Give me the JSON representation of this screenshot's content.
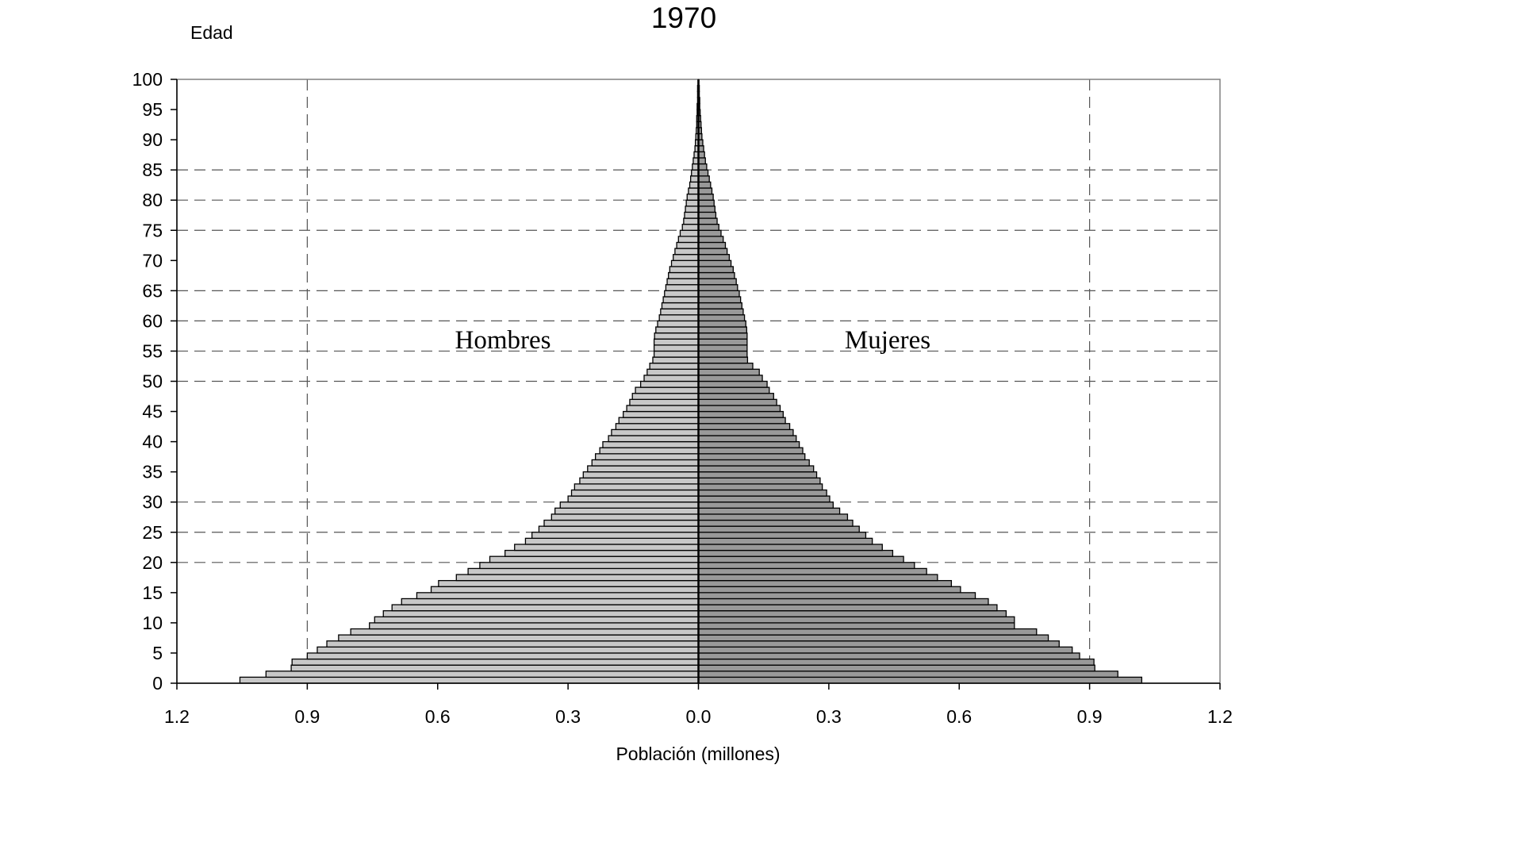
{
  "chart_data": {
    "type": "bar",
    "orientation": "horizontal",
    "layout": "population-pyramid",
    "title": "1970",
    "ylabel": "Edad",
    "xlabel": "Población (millones)",
    "xlim": [
      -1.2,
      1.2
    ],
    "ylim": [
      0,
      100
    ],
    "x_tick_labels": [
      "1.2",
      "0.9",
      "0.6",
      "0.3",
      "0.0",
      "0.3",
      "0.6",
      "0.9",
      "1.2"
    ],
    "y_ticks": [
      0,
      5,
      10,
      15,
      20,
      25,
      30,
      35,
      40,
      45,
      50,
      55,
      60,
      65,
      70,
      75,
      80,
      85,
      90,
      95,
      100
    ],
    "annotations": [
      {
        "text": "Hombres",
        "series": "Hombres"
      },
      {
        "text": "Mujeres",
        "series": "Mujeres"
      }
    ],
    "grid": {
      "vertical_at": [
        -0.9,
        0.9
      ],
      "horizontal_at": [
        20,
        25,
        30,
        50,
        55,
        60,
        65,
        75,
        80,
        85
      ],
      "style": "dashed"
    },
    "colors": {
      "Hombres": "#c8c8c8",
      "Mujeres": "#999999",
      "edge": "#000000",
      "grid": "#555555"
    },
    "ages": [
      0,
      1,
      2,
      3,
      4,
      5,
      6,
      7,
      8,
      9,
      10,
      11,
      12,
      13,
      14,
      15,
      16,
      17,
      18,
      19,
      20,
      21,
      22,
      23,
      24,
      25,
      26,
      27,
      28,
      29,
      30,
      31,
      32,
      33,
      34,
      35,
      36,
      37,
      38,
      39,
      40,
      41,
      42,
      43,
      44,
      45,
      46,
      47,
      48,
      49,
      50,
      51,
      52,
      53,
      54,
      55,
      56,
      57,
      58,
      59,
      60,
      61,
      62,
      63,
      64,
      65,
      66,
      67,
      68,
      69,
      70,
      71,
      72,
      73,
      74,
      75,
      76,
      77,
      78,
      79,
      80,
      81,
      82,
      83,
      84,
      85,
      86,
      87,
      88,
      89,
      90,
      91,
      92,
      93,
      94,
      95,
      96,
      97,
      98,
      99
    ],
    "series": [
      {
        "name": "Hombres",
        "values": [
          1.055,
          0.995,
          0.937,
          0.935,
          0.9,
          0.877,
          0.855,
          0.828,
          0.8,
          0.757,
          0.745,
          0.725,
          0.705,
          0.683,
          0.648,
          0.615,
          0.598,
          0.557,
          0.53,
          0.503,
          0.48,
          0.445,
          0.423,
          0.398,
          0.383,
          0.367,
          0.355,
          0.338,
          0.33,
          0.318,
          0.3,
          0.292,
          0.285,
          0.273,
          0.265,
          0.255,
          0.245,
          0.237,
          0.227,
          0.22,
          0.207,
          0.2,
          0.19,
          0.183,
          0.173,
          0.165,
          0.158,
          0.152,
          0.145,
          0.133,
          0.125,
          0.118,
          0.112,
          0.105,
          0.102,
          0.102,
          0.102,
          0.101,
          0.098,
          0.094,
          0.09,
          0.087,
          0.084,
          0.081,
          0.078,
          0.075,
          0.072,
          0.069,
          0.066,
          0.062,
          0.058,
          0.054,
          0.05,
          0.046,
          0.042,
          0.037,
          0.034,
          0.032,
          0.03,
          0.028,
          0.026,
          0.023,
          0.02,
          0.018,
          0.016,
          0.014,
          0.012,
          0.01,
          0.008,
          0.007,
          0.006,
          0.005,
          0.004,
          0.004,
          0.003,
          0.003,
          0.002,
          0.002,
          0.002,
          0.001
        ]
      },
      {
        "name": "Mujeres",
        "values": [
          1.02,
          0.965,
          0.912,
          0.91,
          0.877,
          0.86,
          0.83,
          0.805,
          0.778,
          0.727,
          0.727,
          0.708,
          0.687,
          0.667,
          0.637,
          0.603,
          0.582,
          0.55,
          0.525,
          0.497,
          0.472,
          0.447,
          0.423,
          0.4,
          0.385,
          0.37,
          0.355,
          0.343,
          0.325,
          0.31,
          0.302,
          0.295,
          0.285,
          0.28,
          0.272,
          0.265,
          0.255,
          0.245,
          0.24,
          0.232,
          0.225,
          0.218,
          0.21,
          0.2,
          0.195,
          0.188,
          0.18,
          0.173,
          0.163,
          0.158,
          0.147,
          0.14,
          0.125,
          0.113,
          0.112,
          0.112,
          0.112,
          0.112,
          0.111,
          0.109,
          0.106,
          0.103,
          0.1,
          0.097,
          0.094,
          0.09,
          0.087,
          0.083,
          0.08,
          0.075,
          0.071,
          0.066,
          0.062,
          0.057,
          0.052,
          0.047,
          0.043,
          0.04,
          0.038,
          0.036,
          0.034,
          0.031,
          0.028,
          0.025,
          0.022,
          0.019,
          0.016,
          0.014,
          0.012,
          0.01,
          0.008,
          0.007,
          0.006,
          0.005,
          0.004,
          0.003,
          0.003,
          0.002,
          0.002,
          0.001
        ]
      }
    ]
  }
}
